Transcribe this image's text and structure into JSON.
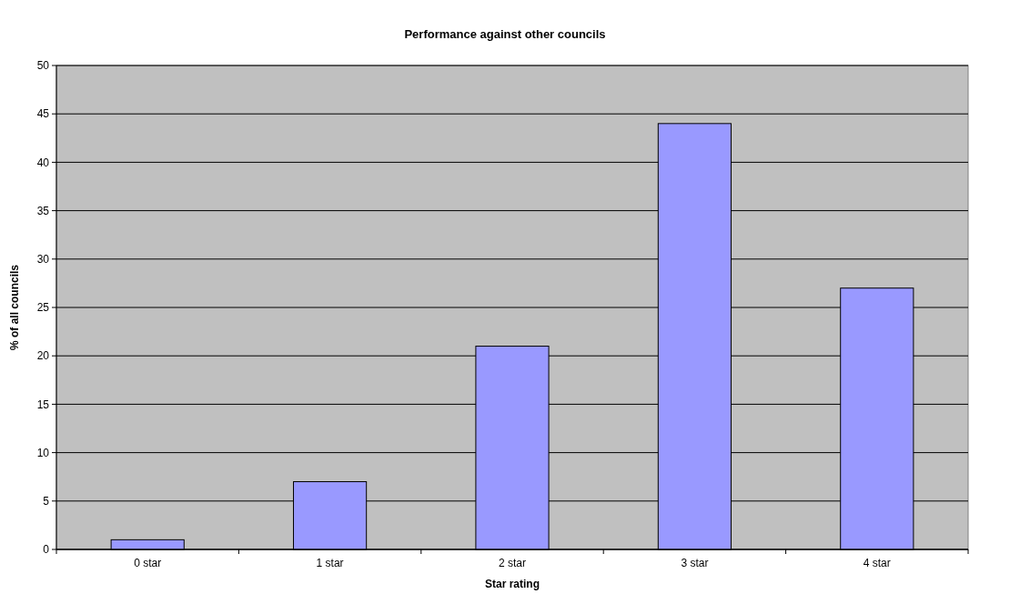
{
  "chart_data": {
    "type": "bar",
    "title": "Performance against other councils",
    "xlabel": "Star rating",
    "ylabel": "% of all councils",
    "categories": [
      "0 star",
      "1 star",
      "2 star",
      "3 star",
      "4 star"
    ],
    "values": [
      1,
      7,
      21,
      44,
      27
    ],
    "color": "#9999ff",
    "ylim": [
      0,
      50
    ],
    "yticks": [
      0,
      5,
      10,
      15,
      20,
      25,
      30,
      35,
      40,
      45,
      50
    ],
    "grid": "y"
  }
}
